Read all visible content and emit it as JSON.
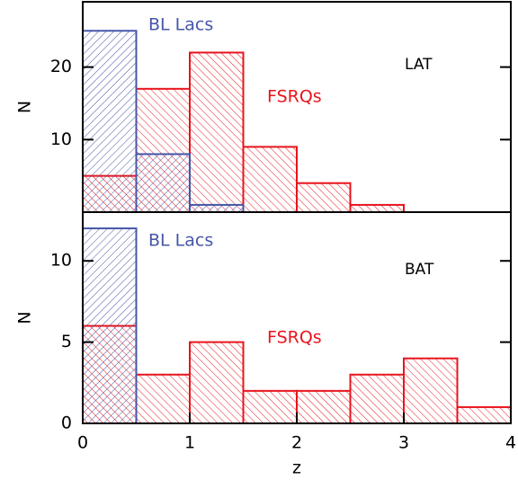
{
  "chart_data": [
    {
      "type": "histogram",
      "annotation": "LAT",
      "ylabel": "N",
      "bins": [
        0,
        0.5,
        1,
        1.5,
        2,
        2.5,
        3,
        3.5,
        4
      ],
      "series": [
        {
          "name": "BL Lacs",
          "color": "#4656a8",
          "values": [
            25,
            8,
            1,
            0,
            0,
            0,
            0,
            0
          ]
        },
        {
          "name": "FSRQs",
          "color": "#e8141c",
          "values": [
            5,
            17,
            22,
            9,
            4,
            1,
            0,
            0
          ]
        }
      ],
      "xlim": [
        0,
        4
      ],
      "ylim": [
        0,
        29
      ],
      "yticks": [
        10,
        20
      ]
    },
    {
      "type": "histogram",
      "annotation": "BAT",
      "ylabel": "N",
      "xlabel": "z",
      "bins": [
        0,
        0.5,
        1,
        1.5,
        2,
        2.5,
        3,
        3.5,
        4
      ],
      "series": [
        {
          "name": "BL Lacs",
          "color": "#4656a8",
          "values": [
            12,
            0,
            0,
            0,
            0,
            0,
            0,
            0
          ]
        },
        {
          "name": "FSRQs",
          "color": "#e8141c",
          "values": [
            6,
            3,
            5,
            2,
            2,
            3,
            4,
            1
          ]
        }
      ],
      "xlim": [
        0,
        4
      ],
      "ylim": [
        0,
        13
      ],
      "yticks": [
        0,
        5,
        10
      ],
      "xticks": [
        0,
        1,
        2,
        3,
        4
      ]
    }
  ]
}
